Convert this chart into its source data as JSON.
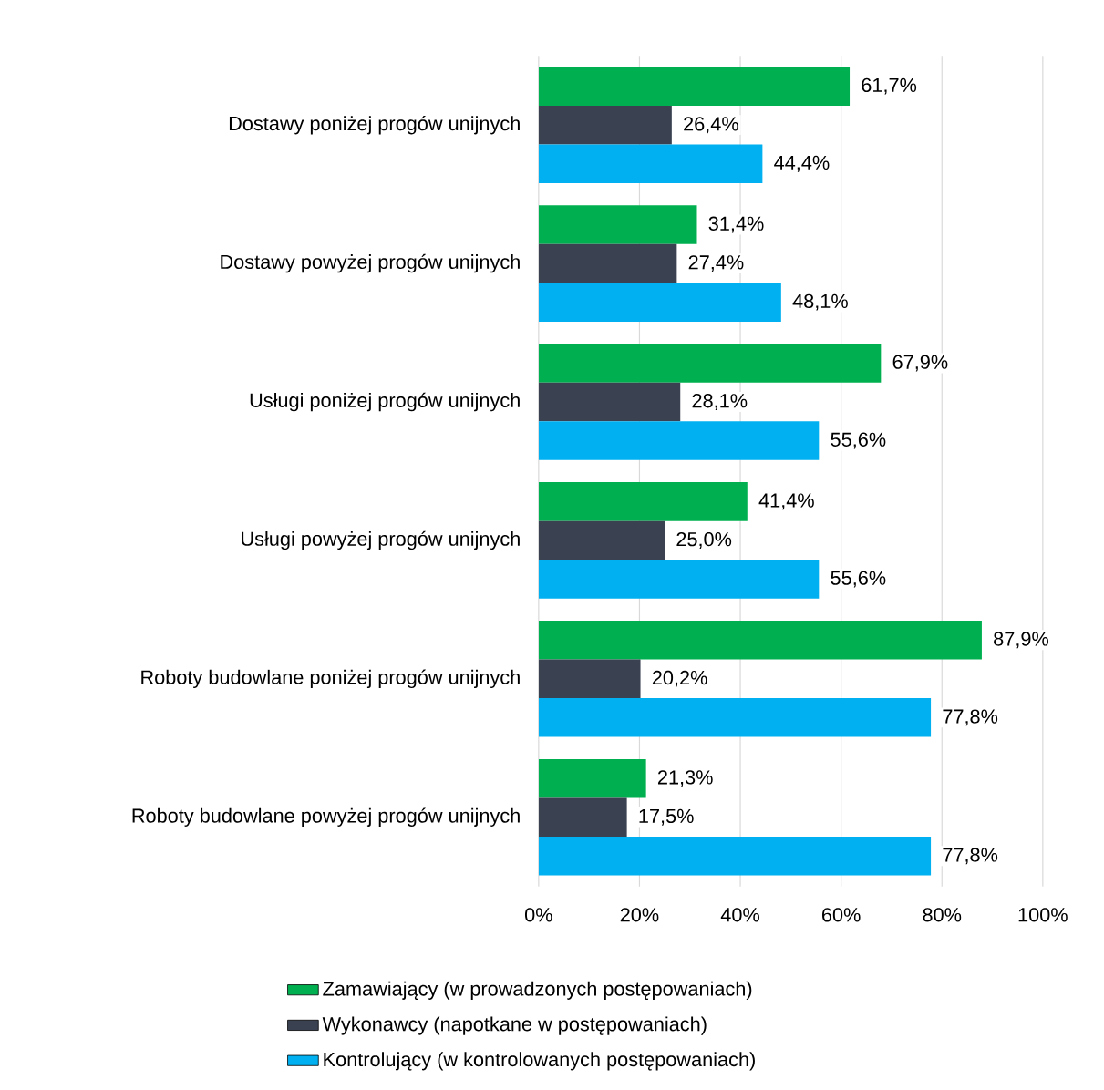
{
  "chart_data": {
    "type": "bar",
    "orientation": "horizontal",
    "categories": [
      "Dostawy poniżej progów unijnych",
      "Dostawy powyżej progów unijnych",
      "Usługi poniżej progów unijnych",
      "Usługi powyżej progów unijnych",
      "Roboty budowlane poniżej progów unijnych",
      "Roboty budowlane powyżej progów unijnych"
    ],
    "series": [
      {
        "name": "Zamawiający (w prowadzonych postępowaniach)",
        "color": "#00b050",
        "values": [
          61.7,
          31.4,
          67.9,
          41.4,
          87.9,
          21.3
        ],
        "value_labels": [
          "61,7%",
          "31,4%",
          "67,9%",
          "41,4%",
          "87,9%",
          "21,3%"
        ]
      },
      {
        "name": "Wykonawcy (napotkane w postępowaniach)",
        "color": "#3a4252",
        "values": [
          26.4,
          27.4,
          28.1,
          25.0,
          20.2,
          17.5
        ],
        "value_labels": [
          "26,4%",
          "27,4%",
          "28,1%",
          "25,0%",
          "20,2%",
          "17,5%"
        ]
      },
      {
        "name": "Kontrolujący (w kontrolowanych postępowaniach)",
        "color": "#00b0f0",
        "values": [
          44.4,
          48.1,
          55.6,
          55.6,
          77.8,
          77.8
        ],
        "value_labels": [
          "44,4%",
          "48,1%",
          "55,6%",
          "55,6%",
          "77,8%",
          "77,8%"
        ]
      }
    ],
    "xlim": [
      0,
      100
    ],
    "xticks": [
      {
        "value": 0,
        "label": "0%"
      },
      {
        "value": 20,
        "label": "20%"
      },
      {
        "value": 40,
        "label": "40%"
      },
      {
        "value": 60,
        "label": "60%"
      },
      {
        "value": 80,
        "label": "80%"
      },
      {
        "value": 100,
        "label": "100%"
      }
    ],
    "grid": "x",
    "legend": "bottom"
  }
}
